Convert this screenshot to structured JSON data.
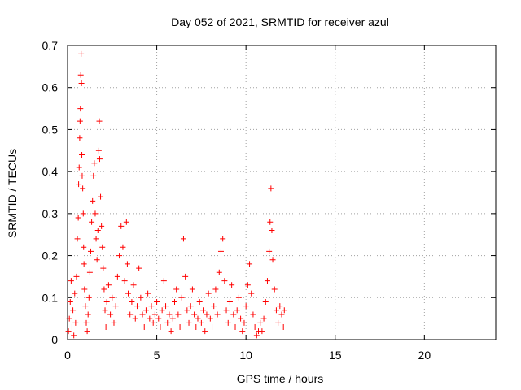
{
  "chart_data": {
    "type": "scatter",
    "title": "Day 052 of 2021, SRMTID for receiver azul",
    "xlabel": "GPS time / hours",
    "ylabel": "SRMTID / TECUs",
    "xlim": [
      0,
      24
    ],
    "ylim": [
      0,
      0.7
    ],
    "xticks": [
      0,
      5,
      10,
      15,
      20
    ],
    "yticks": [
      0,
      0.1,
      0.2,
      0.3,
      0.4,
      0.5,
      0.6,
      0.7
    ],
    "xtick_labels": [
      "0",
      "5",
      "10",
      "15",
      "20"
    ],
    "ytick_labels": [
      "0",
      "0.1",
      "0.2",
      "0.3",
      "0.4",
      "0.5",
      "0.6",
      "0.7"
    ],
    "grid": true,
    "marker": "+",
    "color": "#ff0000",
    "series": [
      {
        "name": "SRMTID",
        "points": [
          [
            0.05,
            0.02
          ],
          [
            0.1,
            0.05
          ],
          [
            0.15,
            0.09
          ],
          [
            0.2,
            0.14
          ],
          [
            0.25,
            0.03
          ],
          [
            0.3,
            0.07
          ],
          [
            0.35,
            0.01
          ],
          [
            0.4,
            0.11
          ],
          [
            0.45,
            0.04
          ],
          [
            0.5,
            0.15
          ],
          [
            0.55,
            0.24
          ],
          [
            0.6,
            0.29
          ],
          [
            0.62,
            0.37
          ],
          [
            0.65,
            0.41
          ],
          [
            0.68,
            0.48
          ],
          [
            0.7,
            0.52
          ],
          [
            0.72,
            0.55
          ],
          [
            0.74,
            0.63
          ],
          [
            0.76,
            0.68
          ],
          [
            0.78,
            0.61
          ],
          [
            0.8,
            0.44
          ],
          [
            0.82,
            0.39
          ],
          [
            0.85,
            0.36
          ],
          [
            0.88,
            0.3
          ],
          [
            0.9,
            0.22
          ],
          [
            0.92,
            0.18
          ],
          [
            0.95,
            0.12
          ],
          [
            1.0,
            0.08
          ],
          [
            1.05,
            0.04
          ],
          [
            1.1,
            0.02
          ],
          [
            1.15,
            0.06
          ],
          [
            1.2,
            0.1
          ],
          [
            1.25,
            0.16
          ],
          [
            1.3,
            0.21
          ],
          [
            1.35,
            0.28
          ],
          [
            1.4,
            0.33
          ],
          [
            1.45,
            0.39
          ],
          [
            1.5,
            0.42
          ],
          [
            1.55,
            0.3
          ],
          [
            1.6,
            0.24
          ],
          [
            1.65,
            0.19
          ],
          [
            1.7,
            0.26
          ],
          [
            1.75,
            0.45
          ],
          [
            1.78,
            0.52
          ],
          [
            1.8,
            0.43
          ],
          [
            1.85,
            0.34
          ],
          [
            1.9,
            0.27
          ],
          [
            1.95,
            0.22
          ],
          [
            2.0,
            0.17
          ],
          [
            2.05,
            0.12
          ],
          [
            2.1,
            0.07
          ],
          [
            2.15,
            0.03
          ],
          [
            2.2,
            0.09
          ],
          [
            2.3,
            0.13
          ],
          [
            2.4,
            0.06
          ],
          [
            2.5,
            0.1
          ],
          [
            2.6,
            0.04
          ],
          [
            2.7,
            0.08
          ],
          [
            2.8,
            0.15
          ],
          [
            2.9,
            0.2
          ],
          [
            3.0,
            0.27
          ],
          [
            3.1,
            0.22
          ],
          [
            3.2,
            0.14
          ],
          [
            3.3,
            0.28
          ],
          [
            3.35,
            0.18
          ],
          [
            3.4,
            0.11
          ],
          [
            3.5,
            0.06
          ],
          [
            3.6,
            0.09
          ],
          [
            3.7,
            0.13
          ],
          [
            3.8,
            0.05
          ],
          [
            3.9,
            0.08
          ],
          [
            4.0,
            0.17
          ],
          [
            4.1,
            0.1
          ],
          [
            4.2,
            0.06
          ],
          [
            4.3,
            0.03
          ],
          [
            4.4,
            0.07
          ],
          [
            4.5,
            0.11
          ],
          [
            4.6,
            0.05
          ],
          [
            4.7,
            0.08
          ],
          [
            4.8,
            0.04
          ],
          [
            4.9,
            0.06
          ],
          [
            5.0,
            0.09
          ],
          [
            5.1,
            0.05
          ],
          [
            5.2,
            0.03
          ],
          [
            5.3,
            0.07
          ],
          [
            5.4,
            0.14
          ],
          [
            5.5,
            0.08
          ],
          [
            5.6,
            0.04
          ],
          [
            5.7,
            0.06
          ],
          [
            5.8,
            0.02
          ],
          [
            5.9,
            0.05
          ],
          [
            6.0,
            0.09
          ],
          [
            6.1,
            0.12
          ],
          [
            6.2,
            0.06
          ],
          [
            6.3,
            0.03
          ],
          [
            6.4,
            0.1
          ],
          [
            6.5,
            0.24
          ],
          [
            6.6,
            0.15
          ],
          [
            6.7,
            0.07
          ],
          [
            6.8,
            0.04
          ],
          [
            6.9,
            0.08
          ],
          [
            7.0,
            0.12
          ],
          [
            7.1,
            0.06
          ],
          [
            7.2,
            0.03
          ],
          [
            7.3,
            0.05
          ],
          [
            7.4,
            0.09
          ],
          [
            7.5,
            0.04
          ],
          [
            7.6,
            0.07
          ],
          [
            7.7,
            0.02
          ],
          [
            7.8,
            0.06
          ],
          [
            7.9,
            0.11
          ],
          [
            8.0,
            0.05
          ],
          [
            8.1,
            0.03
          ],
          [
            8.2,
            0.08
          ],
          [
            8.3,
            0.12
          ],
          [
            8.4,
            0.06
          ],
          [
            8.5,
            0.16
          ],
          [
            8.6,
            0.21
          ],
          [
            8.7,
            0.24
          ],
          [
            8.8,
            0.14
          ],
          [
            8.9,
            0.07
          ],
          [
            9.0,
            0.04
          ],
          [
            9.1,
            0.09
          ],
          [
            9.2,
            0.13
          ],
          [
            9.3,
            0.06
          ],
          [
            9.4,
            0.03
          ],
          [
            9.5,
            0.07
          ],
          [
            9.6,
            0.1
          ],
          [
            9.7,
            0.05
          ],
          [
            9.8,
            0.02
          ],
          [
            9.9,
            0.04
          ],
          [
            10.0,
            0.08
          ],
          [
            10.1,
            0.13
          ],
          [
            10.2,
            0.18
          ],
          [
            10.3,
            0.11
          ],
          [
            10.4,
            0.06
          ],
          [
            10.5,
            0.03
          ],
          [
            10.6,
            0.01
          ],
          [
            10.7,
            0.02
          ],
          [
            10.8,
            0.04
          ],
          [
            10.9,
            0.02
          ],
          [
            11.0,
            0.05
          ],
          [
            11.1,
            0.09
          ],
          [
            11.2,
            0.14
          ],
          [
            11.3,
            0.21
          ],
          [
            11.35,
            0.28
          ],
          [
            11.4,
            0.36
          ],
          [
            11.45,
            0.26
          ],
          [
            11.5,
            0.19
          ],
          [
            11.6,
            0.12
          ],
          [
            11.7,
            0.07
          ],
          [
            11.8,
            0.04
          ],
          [
            11.9,
            0.08
          ],
          [
            12.0,
            0.06
          ],
          [
            12.1,
            0.03
          ],
          [
            12.15,
            0.07
          ]
        ]
      }
    ]
  }
}
